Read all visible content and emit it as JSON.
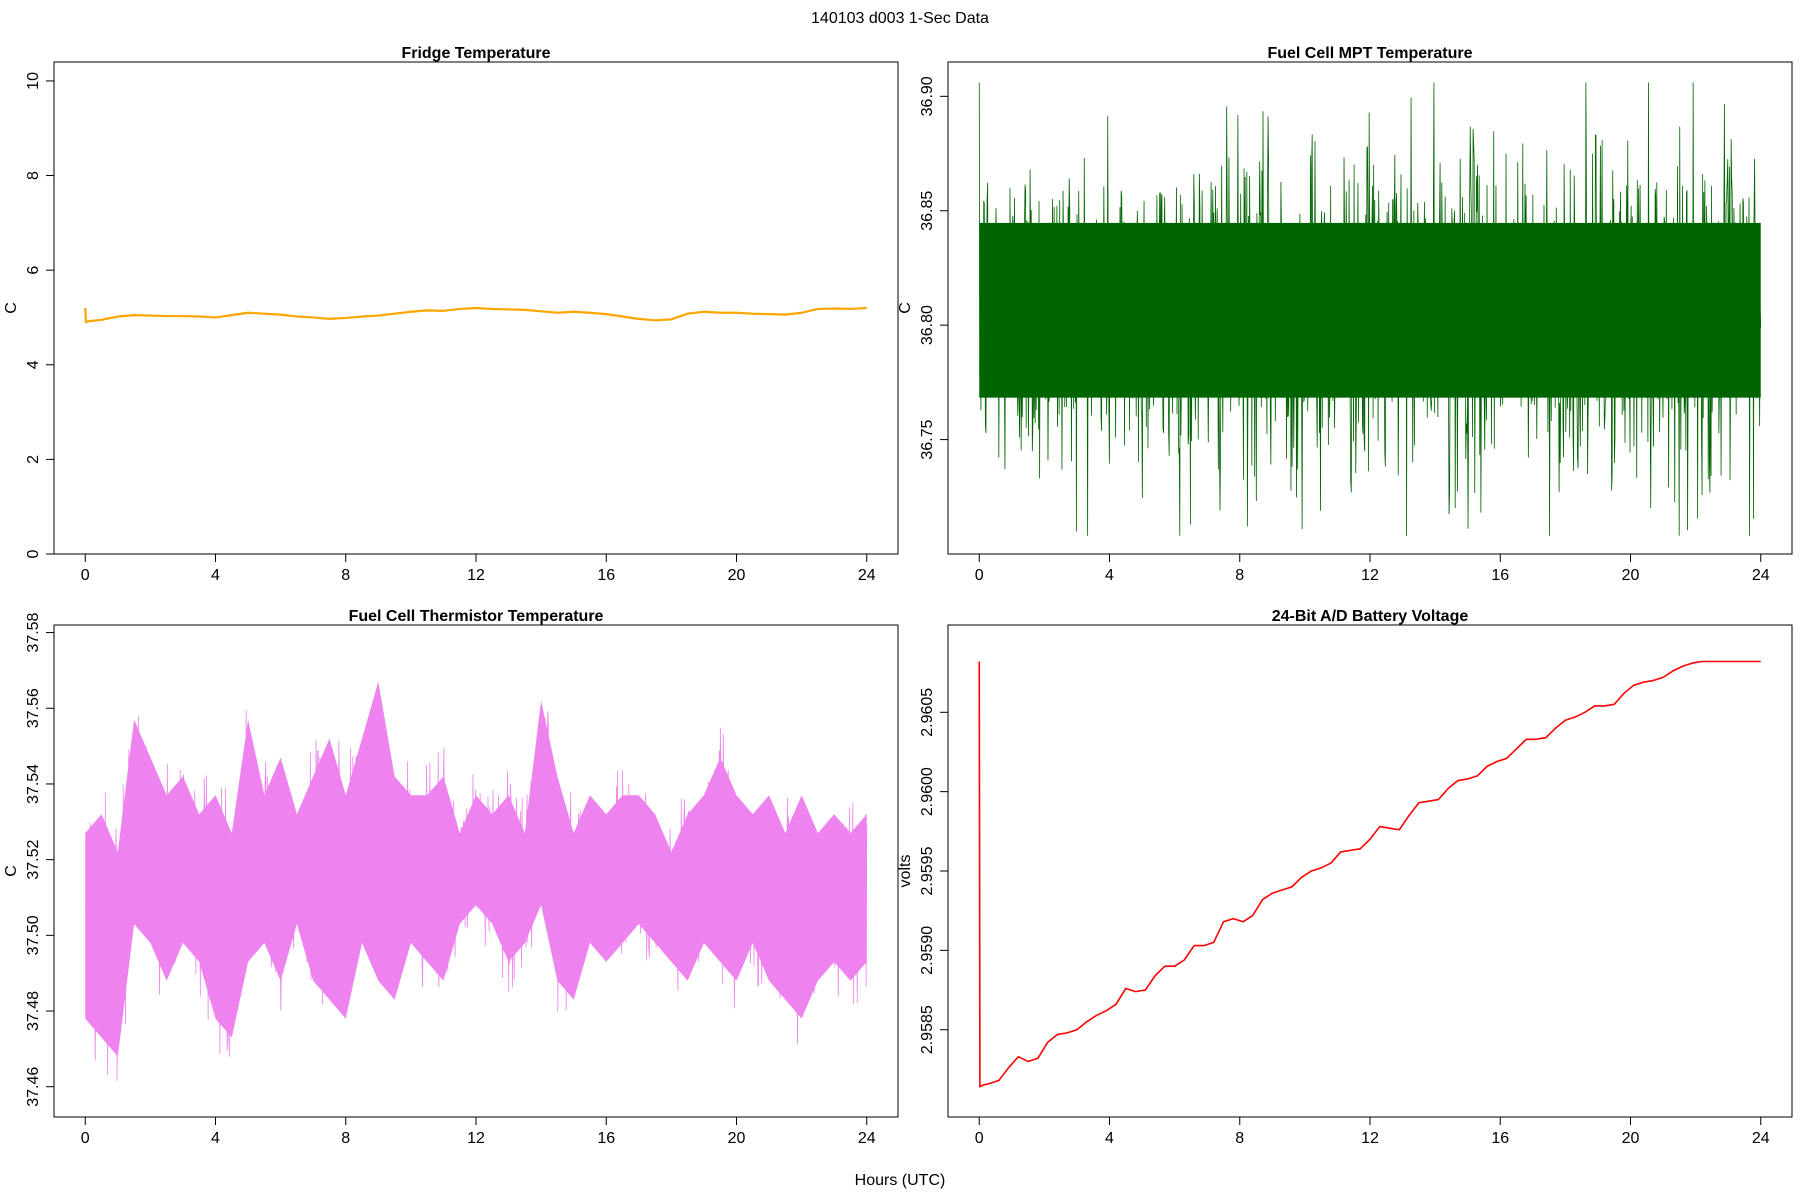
{
  "figure_title": "140103   d003   1-Sec Data",
  "x_label_shared": "Hours (UTC)",
  "chart_data": [
    {
      "id": "fridge",
      "type": "line",
      "title": "Fridge Temperature",
      "xlabel": "",
      "ylabel": "C",
      "xlim": [
        0,
        24
      ],
      "ylim": [
        0,
        10.4
      ],
      "xticks": [
        0,
        4,
        8,
        12,
        16,
        20,
        24
      ],
      "yticks": [
        0,
        2,
        4,
        6,
        8,
        10
      ],
      "ytick_decimals": 0,
      "color": "#FFA500",
      "series": [
        {
          "x": [
            0,
            0.02,
            0.1,
            0.5,
            1,
            1.5,
            2,
            2.5,
            3,
            3.5,
            4,
            4.5,
            5,
            5.5,
            6,
            6.5,
            7,
            7.5,
            8,
            8.5,
            9,
            9.5,
            10,
            10.5,
            11,
            11.5,
            12,
            12.5,
            13,
            13.5,
            14,
            14.5,
            15,
            15.5,
            16,
            16.5,
            17,
            17.5,
            18,
            18.5,
            19,
            19.5,
            20,
            20.5,
            21,
            21.5,
            22,
            22.5,
            23,
            23.5,
            24
          ],
          "values": [
            5.2,
            4.9,
            4.92,
            4.95,
            5.02,
            5.05,
            5.04,
            5.03,
            5.03,
            5.02,
            5.0,
            5.05,
            5.1,
            5.08,
            5.06,
            5.02,
            5.0,
            4.97,
            4.99,
            5.02,
            5.04,
            5.08,
            5.12,
            5.15,
            5.14,
            5.18,
            5.2,
            5.18,
            5.17,
            5.16,
            5.13,
            5.1,
            5.12,
            5.1,
            5.07,
            5.02,
            4.97,
            4.94,
            4.96,
            5.08,
            5.12,
            5.1,
            5.1,
            5.08,
            5.07,
            5.06,
            5.1,
            5.18,
            5.19,
            5.18,
            5.2
          ]
        }
      ]
    },
    {
      "id": "mpt",
      "type": "line",
      "title": "Fuel Cell MPT Temperature",
      "xlabel": "",
      "ylabel": "C",
      "xlim": [
        0,
        24
      ],
      "ylim": [
        36.7,
        36.915
      ],
      "xticks": [
        0,
        4,
        8,
        12,
        16,
        20,
        24
      ],
      "yticks": [
        36.75,
        36.8,
        36.85,
        36.9
      ],
      "ytick_decimals": 2,
      "color": "#006400",
      "series": [
        {
          "x": [
            0,
            1,
            2,
            3,
            4,
            5,
            6,
            7,
            8,
            9,
            10,
            11,
            12,
            13,
            14,
            15,
            16,
            17,
            18,
            19,
            20,
            21,
            22,
            23,
            24
          ],
          "values": [
            36.805,
            36.806,
            36.804,
            36.806,
            36.805,
            36.805,
            36.804,
            36.806,
            36.805,
            36.804,
            36.805,
            36.806,
            36.805,
            36.805,
            36.804,
            36.805,
            36.806,
            36.805,
            36.804,
            36.805,
            36.806,
            36.805,
            36.804,
            36.805,
            36.805
          ],
          "noise_band": [
            36.765,
            36.848
          ],
          "extreme_range": [
            36.708,
            36.906
          ]
        }
      ]
    },
    {
      "id": "thermistor",
      "type": "line",
      "title": "Fuel Cell Thermistor Temperature",
      "xlabel": "",
      "ylabel": "C",
      "xlim": [
        0,
        24
      ],
      "ylim": [
        37.452,
        37.582
      ],
      "xticks": [
        0,
        4,
        8,
        12,
        16,
        20,
        24
      ],
      "yticks": [
        37.46,
        37.48,
        37.5,
        37.52,
        37.54,
        37.56,
        37.58
      ],
      "ytick_decimals": 2,
      "color": "#EE82EE",
      "series": [
        {
          "x": [
            0,
            0.5,
            1,
            1.5,
            2,
            2.5,
            3,
            3.5,
            4,
            4.5,
            5,
            5.5,
            6,
            6.5,
            7,
            7.5,
            8,
            8.5,
            9,
            9.5,
            10,
            10.5,
            11,
            11.5,
            12,
            12.5,
            13,
            13.5,
            14,
            14.5,
            15,
            15.5,
            16,
            16.5,
            17,
            17.5,
            18,
            18.5,
            19,
            19.5,
            20,
            20.5,
            21,
            21.5,
            22,
            22.5,
            23,
            23.5,
            24
          ],
          "upper": [
            37.535,
            37.54,
            37.53,
            37.565,
            37.555,
            37.545,
            37.55,
            37.54,
            37.545,
            37.535,
            37.565,
            37.545,
            37.555,
            37.54,
            37.55,
            37.56,
            37.545,
            37.56,
            37.575,
            37.55,
            37.545,
            37.545,
            37.55,
            37.535,
            37.545,
            37.54,
            37.545,
            37.535,
            37.57,
            37.55,
            37.535,
            37.545,
            37.54,
            37.545,
            37.545,
            37.54,
            37.53,
            37.54,
            37.545,
            37.555,
            37.545,
            37.54,
            37.545,
            37.535,
            37.545,
            37.535,
            37.54,
            37.535,
            37.54
          ],
          "lower": [
            37.47,
            37.465,
            37.46,
            37.495,
            37.49,
            37.48,
            37.49,
            37.485,
            37.47,
            37.465,
            37.485,
            37.49,
            37.48,
            37.495,
            37.48,
            37.475,
            37.47,
            37.49,
            37.48,
            37.475,
            37.49,
            37.485,
            37.48,
            37.495,
            37.5,
            37.495,
            37.485,
            37.49,
            37.5,
            37.48,
            37.475,
            37.49,
            37.485,
            37.49,
            37.495,
            37.49,
            37.485,
            37.48,
            37.49,
            37.485,
            37.48,
            37.49,
            37.48,
            37.475,
            37.47,
            37.48,
            37.485,
            37.48,
            37.485
          ]
        }
      ]
    },
    {
      "id": "battery",
      "type": "line",
      "title": "24-Bit A/D Battery Voltage",
      "xlabel": "",
      "ylabel": "volts",
      "xlim": [
        0,
        24
      ],
      "ylim": [
        2.95795,
        2.96105
      ],
      "xticks": [
        0,
        4,
        8,
        12,
        16,
        20,
        24
      ],
      "yticks": [
        2.9585,
        2.959,
        2.9595,
        2.96,
        2.9605
      ],
      "ytick_decimals": 4,
      "color": "#FF0000",
      "series": [
        {
          "x": [
            0,
            0.02,
            0.1,
            0.3,
            0.6,
            0.9,
            1.2,
            1.5,
            1.8,
            2.1,
            2.4,
            2.7,
            3.0,
            3.3,
            3.6,
            3.9,
            4.2,
            4.5,
            4.8,
            5.1,
            5.4,
            5.7,
            6.0,
            6.3,
            6.6,
            6.9,
            7.2,
            7.5,
            7.8,
            8.1,
            8.4,
            8.7,
            9.0,
            9.3,
            9.6,
            9.9,
            10.2,
            10.5,
            10.8,
            11.1,
            11.4,
            11.7,
            12.0,
            12.3,
            12.6,
            12.9,
            13.2,
            13.5,
            13.8,
            14.1,
            14.4,
            14.7,
            15.0,
            15.3,
            15.6,
            15.9,
            16.2,
            16.5,
            16.8,
            17.1,
            17.4,
            17.7,
            18.0,
            18.3,
            18.6,
            18.9,
            19.2,
            19.5,
            19.8,
            20.1,
            20.4,
            20.7,
            21.0,
            21.3,
            21.6,
            21.9,
            22.2,
            22.5,
            22.8,
            23.1,
            23.4,
            23.7,
            24.0
          ],
          "values": [
            2.96082,
            2.95814,
            2.95815,
            2.95816,
            2.95818,
            2.95826,
            2.95833,
            2.9583,
            2.95832,
            2.95842,
            2.95847,
            2.95848,
            2.9585,
            2.95855,
            2.95859,
            2.95862,
            2.95866,
            2.95876,
            2.95874,
            2.95875,
            2.95884,
            2.9589,
            2.9589,
            2.95894,
            2.95903,
            2.95903,
            2.95905,
            2.95918,
            2.9592,
            2.95918,
            2.95922,
            2.95932,
            2.95936,
            2.95938,
            2.9594,
            2.95946,
            2.9595,
            2.95952,
            2.95955,
            2.95962,
            2.95963,
            2.95964,
            2.9597,
            2.95978,
            2.95977,
            2.95976,
            2.95985,
            2.95993,
            2.95994,
            2.95995,
            2.96002,
            2.96007,
            2.96008,
            2.9601,
            2.96016,
            2.96019,
            2.96021,
            2.96027,
            2.96033,
            2.96033,
            2.96034,
            2.9604,
            2.96045,
            2.96047,
            2.9605,
            2.96054,
            2.96054,
            2.96055,
            2.96062,
            2.96067,
            2.96069,
            2.9607,
            2.96072,
            2.96076,
            2.96079,
            2.96081,
            2.96082,
            2.96082,
            2.96082,
            2.96082,
            2.96082,
            2.96082,
            2.96082
          ]
        }
      ]
    }
  ]
}
